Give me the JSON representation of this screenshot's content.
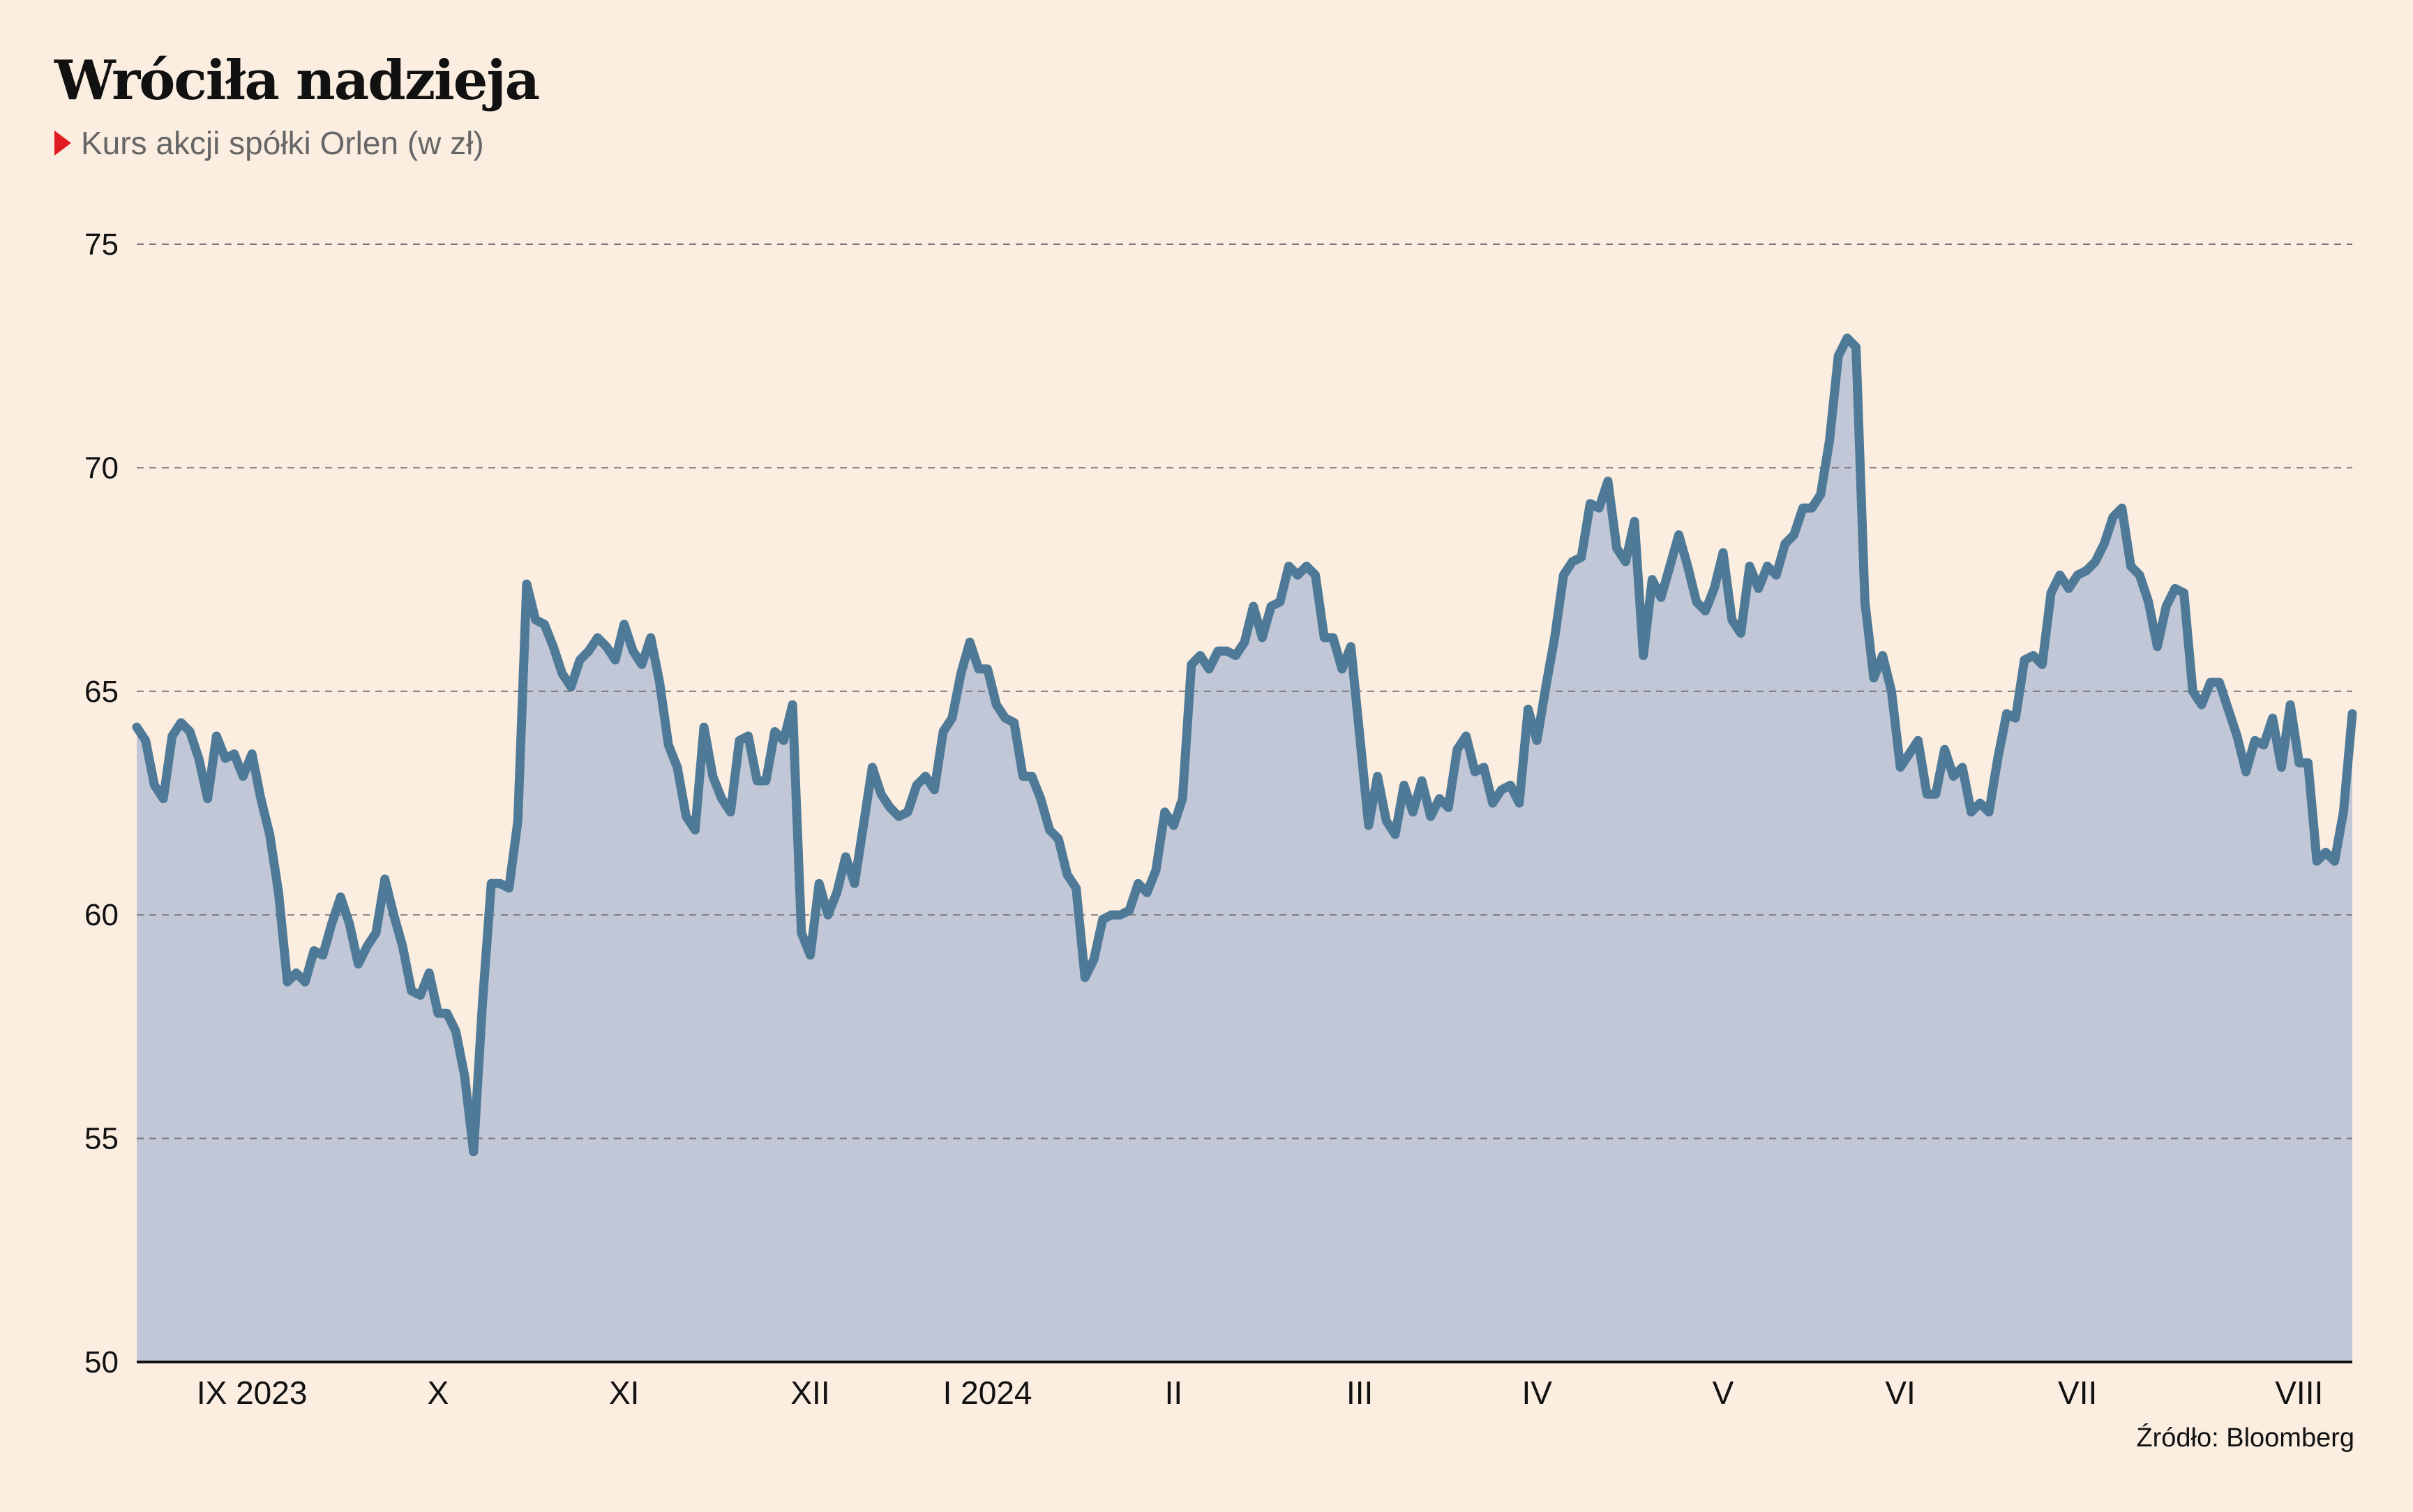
{
  "chart_data": {
    "type": "area",
    "title": "Wróciła nadzieja",
    "subtitle": "Kurs akcji spółki Orlen (w zł)",
    "source": "Źródło: Bloomberg",
    "ylim": [
      50,
      75
    ],
    "yticks": [
      50,
      55,
      60,
      65,
      70,
      75
    ],
    "grid": true,
    "x_range": [
      0,
      250
    ],
    "xticks": [
      {
        "label": "IX 2023",
        "x": 13
      },
      {
        "label": "X",
        "x": 34
      },
      {
        "label": "XI",
        "x": 55
      },
      {
        "label": "XII",
        "x": 76
      },
      {
        "label": "I 2024",
        "x": 96
      },
      {
        "label": "II",
        "x": 117
      },
      {
        "label": "III",
        "x": 138
      },
      {
        "label": "IV",
        "x": 158
      },
      {
        "label": "V",
        "x": 179
      },
      {
        "label": "VI",
        "x": 199
      },
      {
        "label": "VII",
        "x": 219
      },
      {
        "label": "VIII",
        "x": 244
      }
    ],
    "series": [
      {
        "values": [
          [
            0,
            64.2
          ],
          [
            1,
            63.9
          ],
          [
            2,
            62.9
          ],
          [
            3,
            62.6
          ],
          [
            4,
            64.0
          ],
          [
            5,
            64.3
          ],
          [
            6,
            64.1
          ],
          [
            7,
            63.5
          ],
          [
            8,
            62.6
          ],
          [
            9,
            64.0
          ],
          [
            10,
            63.5
          ],
          [
            11,
            63.6
          ],
          [
            12,
            63.1
          ],
          [
            13,
            63.6
          ],
          [
            14,
            62.6
          ],
          [
            15,
            61.8
          ],
          [
            16,
            60.5
          ],
          [
            17,
            58.5
          ],
          [
            18,
            58.7
          ],
          [
            19,
            58.5
          ],
          [
            20,
            59.2
          ],
          [
            21,
            59.1
          ],
          [
            22,
            59.8
          ],
          [
            23,
            60.4
          ],
          [
            24,
            59.8
          ],
          [
            25,
            58.9
          ],
          [
            26,
            59.3
          ],
          [
            27,
            59.6
          ],
          [
            28,
            60.8
          ],
          [
            29,
            60.0
          ],
          [
            30,
            59.3
          ],
          [
            31,
            58.3
          ],
          [
            32,
            58.2
          ],
          [
            33,
            58.7
          ],
          [
            34,
            57.8
          ],
          [
            35,
            57.8
          ],
          [
            36,
            57.4
          ],
          [
            37,
            56.4
          ],
          [
            38,
            54.7
          ],
          [
            39,
            58.0
          ],
          [
            40,
            60.7
          ],
          [
            41,
            60.7
          ],
          [
            42,
            60.6
          ],
          [
            43,
            62.1
          ],
          [
            44,
            67.4
          ],
          [
            45,
            66.6
          ],
          [
            46,
            66.5
          ],
          [
            47,
            66.0
          ],
          [
            48,
            65.4
          ],
          [
            49,
            65.1
          ],
          [
            50,
            65.7
          ],
          [
            51,
            65.9
          ],
          [
            52,
            66.2
          ],
          [
            53,
            66.0
          ],
          [
            54,
            65.7
          ],
          [
            55,
            66.5
          ],
          [
            56,
            65.9
          ],
          [
            57,
            65.6
          ],
          [
            58,
            66.2
          ],
          [
            59,
            65.2
          ],
          [
            60,
            63.8
          ],
          [
            61,
            63.3
          ],
          [
            62,
            62.2
          ],
          [
            63,
            61.9
          ],
          [
            64,
            64.2
          ],
          [
            65,
            63.1
          ],
          [
            66,
            62.6
          ],
          [
            67,
            62.3
          ],
          [
            68,
            63.9
          ],
          [
            69,
            64.0
          ],
          [
            70,
            63.0
          ],
          [
            71,
            63.0
          ],
          [
            72,
            64.1
          ],
          [
            73,
            63.9
          ],
          [
            74,
            64.7
          ],
          [
            75,
            59.6
          ],
          [
            76,
            59.1
          ],
          [
            77,
            60.7
          ],
          [
            78,
            60.0
          ],
          [
            79,
            60.5
          ],
          [
            80,
            61.3
          ],
          [
            81,
            60.7
          ],
          [
            82,
            62.0
          ],
          [
            83,
            63.3
          ],
          [
            84,
            62.7
          ],
          [
            85,
            62.4
          ],
          [
            86,
            62.2
          ],
          [
            87,
            62.3
          ],
          [
            88,
            62.9
          ],
          [
            89,
            63.1
          ],
          [
            90,
            62.8
          ],
          [
            91,
            64.1
          ],
          [
            92,
            64.4
          ],
          [
            93,
            65.4
          ],
          [
            94,
            66.1
          ],
          [
            95,
            65.5
          ],
          [
            96,
            65.5
          ],
          [
            97,
            64.7
          ],
          [
            98,
            64.4
          ],
          [
            99,
            64.3
          ],
          [
            100,
            63.1
          ],
          [
            101,
            63.1
          ],
          [
            102,
            62.6
          ],
          [
            103,
            61.9
          ],
          [
            104,
            61.7
          ],
          [
            105,
            60.9
          ],
          [
            106,
            60.6
          ],
          [
            107,
            58.6
          ],
          [
            108,
            59.0
          ],
          [
            109,
            59.9
          ],
          [
            110,
            60.0
          ],
          [
            111,
            60.0
          ],
          [
            112,
            60.1
          ],
          [
            113,
            60.7
          ],
          [
            114,
            60.5
          ],
          [
            115,
            61.0
          ],
          [
            116,
            62.3
          ],
          [
            117,
            62.0
          ],
          [
            118,
            62.6
          ],
          [
            119,
            65.6
          ],
          [
            120,
            65.8
          ],
          [
            121,
            65.5
          ],
          [
            122,
            65.9
          ],
          [
            123,
            65.9
          ],
          [
            124,
            65.8
          ],
          [
            125,
            66.1
          ],
          [
            126,
            66.9
          ],
          [
            127,
            66.2
          ],
          [
            128,
            66.9
          ],
          [
            129,
            67.0
          ],
          [
            130,
            67.8
          ],
          [
            131,
            67.6
          ],
          [
            132,
            67.8
          ],
          [
            133,
            67.6
          ],
          [
            134,
            66.2
          ],
          [
            135,
            66.2
          ],
          [
            136,
            65.5
          ],
          [
            137,
            66.0
          ],
          [
            138,
            64.0
          ],
          [
            139,
            62.0
          ],
          [
            140,
            63.1
          ],
          [
            141,
            62.1
          ],
          [
            142,
            61.8
          ],
          [
            143,
            62.9
          ],
          [
            144,
            62.3
          ],
          [
            145,
            63.0
          ],
          [
            146,
            62.2
          ],
          [
            147,
            62.6
          ],
          [
            148,
            62.4
          ],
          [
            149,
            63.7
          ],
          [
            150,
            64.0
          ],
          [
            151,
            63.2
          ],
          [
            152,
            63.3
          ],
          [
            153,
            62.5
          ],
          [
            154,
            62.8
          ],
          [
            155,
            62.9
          ],
          [
            156,
            62.5
          ],
          [
            157,
            64.6
          ],
          [
            158,
            63.9
          ],
          [
            159,
            65.1
          ],
          [
            160,
            66.2
          ],
          [
            161,
            67.6
          ],
          [
            162,
            67.9
          ],
          [
            163,
            68.0
          ],
          [
            164,
            69.2
          ],
          [
            165,
            69.1
          ],
          [
            166,
            69.7
          ],
          [
            167,
            68.2
          ],
          [
            168,
            67.9
          ],
          [
            169,
            68.8
          ],
          [
            170,
            65.8
          ],
          [
            171,
            67.5
          ],
          [
            172,
            67.1
          ],
          [
            173,
            67.8
          ],
          [
            174,
            68.5
          ],
          [
            175,
            67.8
          ],
          [
            176,
            67.0
          ],
          [
            177,
            66.8
          ],
          [
            178,
            67.3
          ],
          [
            179,
            68.1
          ],
          [
            180,
            66.6
          ],
          [
            181,
            66.3
          ],
          [
            182,
            67.8
          ],
          [
            183,
            67.3
          ],
          [
            184,
            67.8
          ],
          [
            185,
            67.6
          ],
          [
            186,
            68.3
          ],
          [
            187,
            68.5
          ],
          [
            188,
            69.1
          ],
          [
            189,
            69.1
          ],
          [
            190,
            69.4
          ],
          [
            191,
            70.6
          ],
          [
            192,
            72.5
          ],
          [
            193,
            72.9
          ],
          [
            194,
            72.7
          ],
          [
            195,
            67.0
          ],
          [
            196,
            65.3
          ],
          [
            197,
            65.8
          ],
          [
            198,
            65.0
          ],
          [
            199,
            63.3
          ],
          [
            200,
            63.6
          ],
          [
            201,
            63.9
          ],
          [
            202,
            62.7
          ],
          [
            203,
            62.7
          ],
          [
            204,
            63.7
          ],
          [
            205,
            63.1
          ],
          [
            206,
            63.3
          ],
          [
            207,
            62.3
          ],
          [
            208,
            62.5
          ],
          [
            209,
            62.3
          ],
          [
            210,
            63.5
          ],
          [
            211,
            64.5
          ],
          [
            212,
            64.4
          ],
          [
            213,
            65.7
          ],
          [
            214,
            65.8
          ],
          [
            215,
            65.6
          ],
          [
            216,
            67.2
          ],
          [
            217,
            67.6
          ],
          [
            218,
            67.3
          ],
          [
            219,
            67.6
          ],
          [
            220,
            67.7
          ],
          [
            221,
            67.9
          ],
          [
            222,
            68.3
          ],
          [
            223,
            68.9
          ],
          [
            224,
            69.1
          ],
          [
            225,
            67.8
          ],
          [
            226,
            67.6
          ],
          [
            227,
            67.0
          ],
          [
            228,
            66.0
          ],
          [
            229,
            66.9
          ],
          [
            230,
            67.3
          ],
          [
            231,
            67.2
          ],
          [
            232,
            65.0
          ],
          [
            233,
            64.7
          ],
          [
            234,
            65.2
          ],
          [
            235,
            65.2
          ],
          [
            236,
            64.6
          ],
          [
            237,
            64.0
          ],
          [
            238,
            63.2
          ],
          [
            239,
            63.9
          ],
          [
            240,
            63.8
          ],
          [
            241,
            64.4
          ],
          [
            242,
            63.3
          ],
          [
            243,
            64.7
          ],
          [
            244,
            63.4
          ],
          [
            245,
            63.4
          ],
          [
            246,
            61.2
          ],
          [
            247,
            61.4
          ],
          [
            248,
            61.2
          ],
          [
            249,
            62.3
          ],
          [
            250,
            64.5
          ]
        ]
      }
    ],
    "colors": {
      "background": "#fbeee1",
      "line": "#4f7a97",
      "fill": "#c1c7d6",
      "grid": "#777777",
      "axis": "#111111",
      "marker": "#e11b22"
    }
  }
}
